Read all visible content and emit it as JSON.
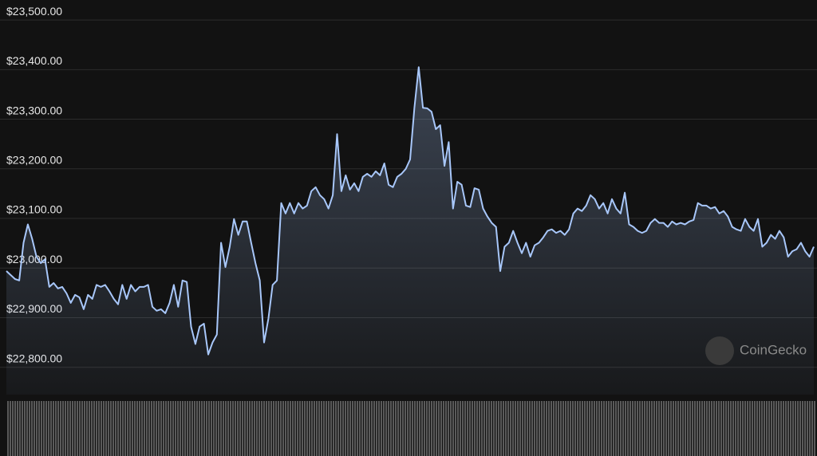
{
  "chart_data": {
    "type": "line",
    "watermark": "CoinGecko",
    "color": "#a8c7fa",
    "grid": true,
    "ylim": [
      22745,
      23521
    ],
    "yticks": [
      {
        "value": 22800,
        "label": "$22,800.00"
      },
      {
        "value": 22900,
        "label": "$22,900.00"
      },
      {
        "value": 23000,
        "label": "$23,000.00"
      },
      {
        "value": 23100,
        "label": "$23,100.00"
      },
      {
        "value": 23200,
        "label": "$23,200.00"
      },
      {
        "value": 23300,
        "label": "$23,300.00"
      },
      {
        "value": 23400,
        "label": "$23,400.00"
      },
      {
        "value": 23500,
        "label": "$23,500.00"
      }
    ],
    "values": [
      22994,
      22986,
      22978,
      22975,
      23051,
      23088,
      23059,
      23023,
      23010,
      23018,
      22962,
      22970,
      22959,
      22962,
      22949,
      22930,
      22946,
      22941,
      22917,
      22946,
      22938,
      22966,
      22962,
      22966,
      22953,
      22938,
      22927,
      22966,
      22938,
      22966,
      22953,
      22962,
      22962,
      22966,
      22922,
      22914,
      22917,
      22909,
      22930,
      22966,
      22922,
      22975,
      22972,
      22882,
      22847,
      22882,
      22888,
      22826,
      22850,
      22866,
      23051,
      23002,
      23043,
      23099,
      23067,
      23094,
      23094,
      23051,
      23010,
      22975,
      22850,
      22898,
      22966,
      22975,
      23131,
      23110,
      23131,
      23110,
      23131,
      23120,
      23126,
      23155,
      23163,
      23147,
      23139,
      23120,
      23147,
      23270,
      23155,
      23187,
      23158,
      23171,
      23155,
      23184,
      23190,
      23184,
      23195,
      23187,
      23211,
      23168,
      23163,
      23184,
      23190,
      23200,
      23219,
      23323,
      23405,
      23323,
      23322,
      23315,
      23280,
      23288,
      23206,
      23254,
      23120,
      23174,
      23168,
      23126,
      23123,
      23161,
      23158,
      23120,
      23104,
      23091,
      23083,
      22994,
      23043,
      23051,
      23075,
      23051,
      23030,
      23051,
      23023,
      23046,
      23051,
      23062,
      23075,
      23078,
      23071,
      23075,
      23067,
      23078,
      23110,
      23120,
      23115,
      23126,
      23147,
      23139,
      23120,
      23131,
      23110,
      23139,
      23120,
      23110,
      23152,
      23088,
      23083,
      23075,
      23071,
      23075,
      23091,
      23099,
      23091,
      23091,
      23083,
      23094,
      23088,
      23091,
      23088,
      23094,
      23097,
      23131,
      23126,
      23126,
      23120,
      23123,
      23110,
      23115,
      23104,
      23083,
      23078,
      23075,
      23099,
      23083,
      23075,
      23099,
      23043,
      23051,
      23067,
      23059,
      23075,
      23062,
      23023,
      23034,
      23038,
      23051,
      23034,
      23023,
      23043
    ]
  }
}
